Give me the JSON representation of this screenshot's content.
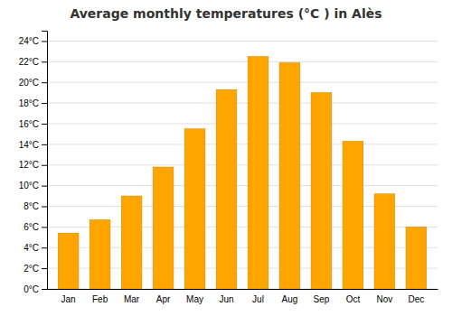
{
  "chart_data": {
    "type": "bar",
    "title": "Average monthly temperatures (°C ) in Alès",
    "categories": [
      "Jan",
      "Feb",
      "Mar",
      "Apr",
      "May",
      "Jun",
      "Jul",
      "Aug",
      "Sep",
      "Oct",
      "Nov",
      "Dec"
    ],
    "values": [
      5.4,
      6.7,
      9.0,
      11.8,
      15.5,
      19.3,
      22.5,
      21.9,
      19.0,
      14.3,
      9.2,
      6.0
    ],
    "color": "#FFA500",
    "ylim": [
      0,
      25
    ],
    "yticks": [
      {
        "value": 0,
        "label": "0°C"
      },
      {
        "value": 2,
        "label": "2°C"
      },
      {
        "value": 4,
        "label": "4°C"
      },
      {
        "value": 6,
        "label": "6°C"
      },
      {
        "value": 8,
        "label": "8°C"
      },
      {
        "value": 10,
        "label": "10°C"
      },
      {
        "value": 12,
        "label": "12°C"
      },
      {
        "value": 14,
        "label": "14°C"
      },
      {
        "value": 16,
        "label": "16°C"
      },
      {
        "value": 18,
        "label": "18°C"
      },
      {
        "value": 20,
        "label": "20°C"
      },
      {
        "value": 22,
        "label": "22°C"
      },
      {
        "value": 24,
        "label": "24°C"
      }
    ],
    "grid": true
  }
}
